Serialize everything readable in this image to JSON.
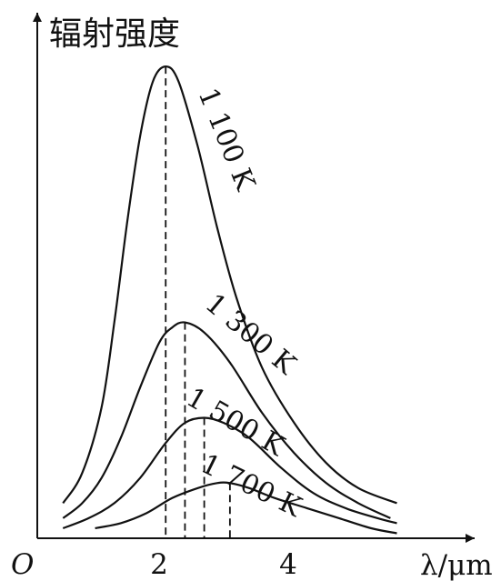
{
  "chart_data": {
    "type": "line",
    "ylabel": "辐射强度",
    "xlabel": "λ/μm",
    "origin_label": "O",
    "x_ticks": [
      {
        "value": 2,
        "label": "2"
      },
      {
        "value": 4,
        "label": "4"
      }
    ],
    "xlim": [
      0,
      6.4
    ],
    "ylim": [
      0,
      1.0
    ],
    "series": [
      {
        "name": "1 100 K",
        "peak_x": 2.0,
        "points": [
          [
            0.4,
            0.07
          ],
          [
            0.7,
            0.13
          ],
          [
            1.0,
            0.26
          ],
          [
            1.2,
            0.43
          ],
          [
            1.4,
            0.63
          ],
          [
            1.6,
            0.8
          ],
          [
            1.8,
            0.91
          ],
          [
            2.0,
            0.94
          ],
          [
            2.2,
            0.91
          ],
          [
            2.5,
            0.78
          ],
          [
            2.8,
            0.62
          ],
          [
            3.1,
            0.48
          ],
          [
            3.5,
            0.34
          ],
          [
            4.0,
            0.23
          ],
          [
            4.5,
            0.15
          ],
          [
            5.0,
            0.1
          ],
          [
            5.6,
            0.07
          ]
        ]
      },
      {
        "name": "1 300 K",
        "peak_x": 2.3,
        "points": [
          [
            0.4,
            0.04
          ],
          [
            0.7,
            0.07
          ],
          [
            1.0,
            0.12
          ],
          [
            1.3,
            0.2
          ],
          [
            1.6,
            0.3
          ],
          [
            1.9,
            0.39
          ],
          [
            2.1,
            0.42
          ],
          [
            2.3,
            0.43
          ],
          [
            2.6,
            0.41
          ],
          [
            3.0,
            0.35
          ],
          [
            3.5,
            0.25
          ],
          [
            4.0,
            0.17
          ],
          [
            4.5,
            0.11
          ],
          [
            5.0,
            0.07
          ],
          [
            5.5,
            0.04
          ]
        ]
      },
      {
        "name": "1 500 K",
        "peak_x": 2.6,
        "points": [
          [
            0.4,
            0.02
          ],
          [
            0.8,
            0.04
          ],
          [
            1.2,
            0.07
          ],
          [
            1.6,
            0.12
          ],
          [
            2.0,
            0.19
          ],
          [
            2.3,
            0.23
          ],
          [
            2.6,
            0.24
          ],
          [
            2.9,
            0.23
          ],
          [
            3.3,
            0.2
          ],
          [
            3.8,
            0.14
          ],
          [
            4.3,
            0.09
          ],
          [
            4.8,
            0.06
          ],
          [
            5.3,
            0.04
          ],
          [
            5.6,
            0.03
          ]
        ]
      },
      {
        "name": "1 700 K",
        "peak_x": 3.0,
        "points": [
          [
            0.9,
            0.02
          ],
          [
            1.3,
            0.03
          ],
          [
            1.7,
            0.05
          ],
          [
            2.1,
            0.08
          ],
          [
            2.5,
            0.1
          ],
          [
            2.8,
            0.11
          ],
          [
            3.0,
            0.11
          ],
          [
            3.3,
            0.1
          ],
          [
            3.7,
            0.08
          ],
          [
            4.2,
            0.06
          ],
          [
            4.7,
            0.04
          ],
          [
            5.2,
            0.02
          ],
          [
            5.6,
            0.01
          ]
        ]
      }
    ],
    "colors": {
      "line": "#111111",
      "background": "#ffffff"
    }
  }
}
